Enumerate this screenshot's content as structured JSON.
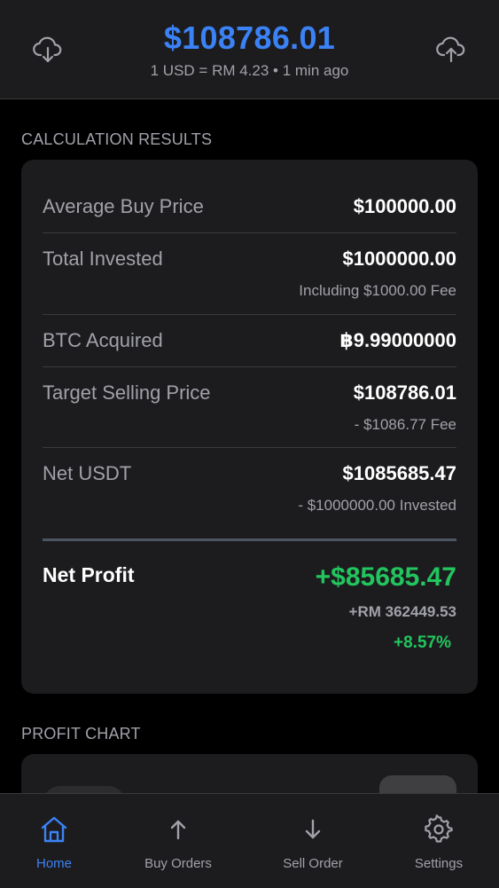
{
  "header": {
    "price": "$108786.01",
    "rate_text": "1 USD = RM 4.23 • 1 min ago",
    "left_icon": "cloud-download-icon",
    "right_icon": "cloud-upload-icon"
  },
  "results": {
    "section_title": "CALCULATION RESULTS",
    "rows": [
      {
        "label": "Average Buy Price",
        "value": "$100000.00",
        "sub": ""
      },
      {
        "label": "Total Invested",
        "value": "$1000000.00",
        "sub": "Including $1000.00 Fee"
      },
      {
        "label": "BTC Acquired",
        "value": "฿9.99000000",
        "sub": ""
      },
      {
        "label": "Target Selling Price",
        "value": "$108786.01",
        "sub": "- $1086.77 Fee"
      },
      {
        "label": "Net USDT",
        "value": "$1085685.47",
        "sub": "- $1000000.00 Invested"
      }
    ],
    "net_profit": {
      "label": "Net Profit",
      "value": "+$85685.47",
      "myr": "+RM 362449.53",
      "percent": "+8.57%"
    }
  },
  "chart": {
    "section_title": "PROFIT CHART"
  },
  "nav": {
    "items": [
      {
        "label": "Home",
        "icon": "home-icon",
        "active": true
      },
      {
        "label": "Buy Orders",
        "icon": "arrow-up-icon",
        "active": false
      },
      {
        "label": "Sell Order",
        "icon": "arrow-down-icon",
        "active": false
      },
      {
        "label": "Settings",
        "icon": "gear-icon",
        "active": false
      }
    ]
  },
  "colors": {
    "accent": "#3b82f6",
    "profit": "#22c55e",
    "card": "#1c1c1e",
    "muted": "#a1a1aa"
  }
}
